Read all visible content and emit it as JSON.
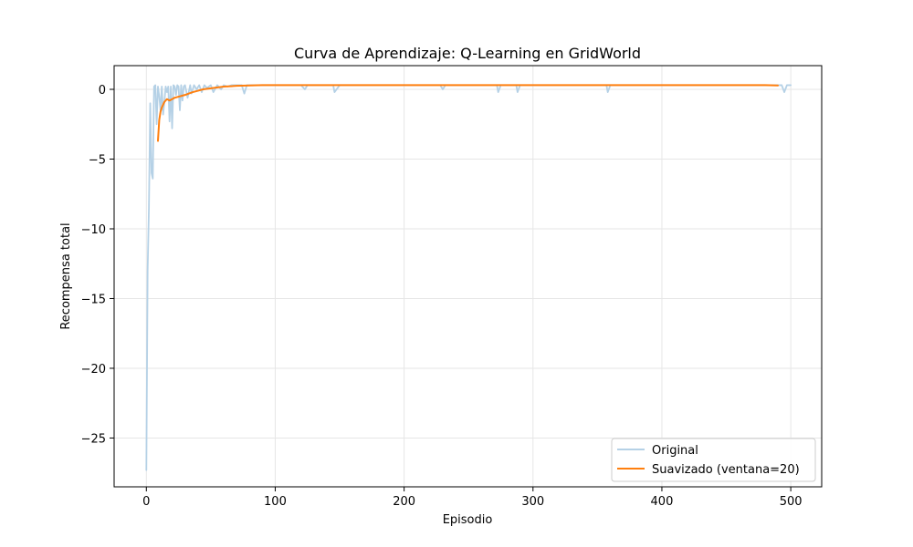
{
  "chart_data": {
    "type": "line",
    "title": "Curva de Aprendizaje: Q-Learning en GridWorld",
    "xlabel": "Episodio",
    "ylabel": "Recompensa total",
    "xlim": [
      -25,
      524
    ],
    "ylim": [
      -28.5,
      1.7
    ],
    "xticks": [
      0,
      100,
      200,
      300,
      400,
      500
    ],
    "xtick_labels": [
      "0",
      "100",
      "200",
      "300",
      "400",
      "500"
    ],
    "yticks": [
      0,
      -5,
      -10,
      -15,
      -20,
      -25
    ],
    "ytick_labels": [
      "0",
      "−5",
      "−10",
      "−15",
      "−20",
      "−25"
    ],
    "grid": true,
    "legend_position": "lower-right",
    "series": [
      {
        "name": "Original",
        "color": "#b5d1e6",
        "x": [
          0,
          1,
          2,
          3,
          4,
          5,
          6,
          7,
          8,
          9,
          10,
          11,
          12,
          13,
          14,
          15,
          16,
          17,
          18,
          19,
          20,
          21,
          22,
          23,
          24,
          25,
          26,
          27,
          28,
          29,
          30,
          32,
          34,
          35,
          37,
          39,
          41,
          43,
          45,
          47,
          50,
          52,
          55,
          58,
          60,
          63,
          66,
          70,
          74,
          76,
          78,
          80,
          90,
          100,
          120,
          123,
          125,
          140,
          145,
          146,
          150,
          200,
          228,
          230,
          232,
          240,
          272,
          273,
          275,
          287,
          288,
          290,
          320,
          357,
          358,
          360,
          400,
          450,
          493,
          495,
          497,
          500
        ],
        "values": [
          -27.3,
          -13.0,
          -8.5,
          -1.0,
          -6.0,
          -6.4,
          0.2,
          0.3,
          -2.5,
          0.2,
          -0.5,
          -1.5,
          0.2,
          -1.8,
          -0.9,
          0.2,
          -0.2,
          0.2,
          -2.3,
          0.2,
          -2.8,
          0.3,
          0.2,
          -0.4,
          0.3,
          0.2,
          -1.5,
          0.3,
          -0.8,
          0.2,
          0.3,
          -0.6,
          0.3,
          -0.3,
          0.3,
          0.0,
          0.3,
          -0.2,
          0.3,
          0.1,
          0.3,
          -0.2,
          0.3,
          0.0,
          0.3,
          0.2,
          0.3,
          0.3,
          0.3,
          -0.3,
          0.3,
          0.3,
          0.3,
          0.3,
          0.3,
          0.0,
          0.3,
          0.3,
          0.3,
          -0.2,
          0.3,
          0.3,
          0.3,
          0.0,
          0.3,
          0.3,
          0.3,
          -0.2,
          0.3,
          0.3,
          -0.2,
          0.3,
          0.3,
          0.3,
          -0.2,
          0.3,
          0.3,
          0.3,
          0.3,
          -0.2,
          0.3,
          0.3
        ]
      },
      {
        "name": "Suavizado (ventana=20)",
        "color": "#ff7f0e",
        "x": [
          9,
          10,
          11,
          12,
          13,
          14,
          15,
          16,
          17,
          18,
          20,
          22,
          24,
          26,
          28,
          30,
          33,
          36,
          40,
          44,
          48,
          52,
          56,
          60,
          65,
          70,
          80,
          90,
          100,
          150,
          200,
          250,
          300,
          350,
          400,
          450,
          480,
          490
        ],
        "values": [
          -3.7,
          -2.2,
          -1.6,
          -1.3,
          -1.1,
          -0.9,
          -0.8,
          -0.7,
          -0.75,
          -0.8,
          -0.7,
          -0.6,
          -0.55,
          -0.5,
          -0.45,
          -0.4,
          -0.3,
          -0.2,
          -0.1,
          0.0,
          0.05,
          0.1,
          0.15,
          0.2,
          0.22,
          0.25,
          0.28,
          0.3,
          0.3,
          0.3,
          0.3,
          0.3,
          0.3,
          0.3,
          0.3,
          0.3,
          0.3,
          0.28
        ]
      }
    ]
  }
}
